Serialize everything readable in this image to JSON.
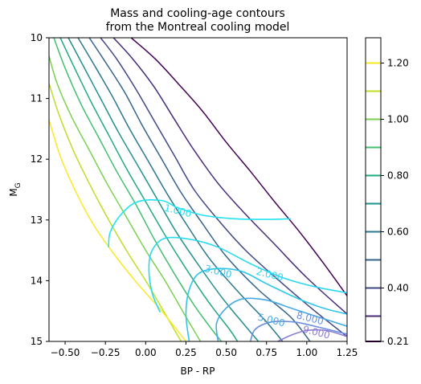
{
  "chart_data": {
    "type": "contour",
    "title_line1": "Mass and cooling-age contours",
    "title_line2": "from the Montreal cooling model",
    "xlabel": "BP - RP",
    "ylabel_main": "M",
    "ylabel_sub": "G",
    "xlim": [
      -0.6,
      1.25
    ],
    "ylim": [
      15,
      10
    ],
    "x_ticks": [
      {
        "value": -0.5,
        "label": "−0.50"
      },
      {
        "value": -0.25,
        "label": "−0.25"
      },
      {
        "value": 0.0,
        "label": "0.00"
      },
      {
        "value": 0.25,
        "label": "0.25"
      },
      {
        "value": 0.5,
        "label": "0.50"
      },
      {
        "value": 0.75,
        "label": "0.75"
      },
      {
        "value": 1.0,
        "label": "1.00"
      },
      {
        "value": 1.25,
        "label": "1.25"
      }
    ],
    "y_ticks": [
      {
        "value": 10,
        "label": "10"
      },
      {
        "value": 11,
        "label": "11"
      },
      {
        "value": 12,
        "label": "12"
      },
      {
        "value": 13,
        "label": "13"
      },
      {
        "value": 14,
        "label": "14"
      },
      {
        "value": 15,
        "label": "15"
      }
    ],
    "colorbar": {
      "min": 0.21,
      "max": 1.29,
      "tick_labels": [
        {
          "value": 0.21,
          "label": "0.21"
        },
        {
          "value": 0.4,
          "label": "0.40"
        },
        {
          "value": 0.6,
          "label": "0.60"
        },
        {
          "value": 0.8,
          "label": "0.80"
        },
        {
          "value": 1.0,
          "label": "1.00"
        },
        {
          "value": 1.2,
          "label": "1.20"
        }
      ],
      "levels": [
        {
          "value": 0.21,
          "color": "#440154"
        },
        {
          "value": 0.3,
          "color": "#472c7a"
        },
        {
          "value": 0.4,
          "color": "#3f4788"
        },
        {
          "value": 0.5,
          "color": "#33638d"
        },
        {
          "value": 0.6,
          "color": "#2a788e"
        },
        {
          "value": 0.7,
          "color": "#21908d"
        },
        {
          "value": 0.8,
          "color": "#22a884"
        },
        {
          "value": 0.9,
          "color": "#44bf70"
        },
        {
          "value": 1.0,
          "color": "#7ad151"
        },
        {
          "value": 1.1,
          "color": "#bddf26"
        },
        {
          "value": 1.2,
          "color": "#fde725"
        }
      ]
    },
    "mass_contours": [
      {
        "level": 0.21,
        "color": "#440154",
        "points": [
          [
            -0.09,
            10.0
          ],
          [
            0.06,
            10.35
          ],
          [
            0.2,
            10.75
          ],
          [
            0.35,
            11.2
          ],
          [
            0.5,
            11.72
          ],
          [
            0.65,
            12.2
          ],
          [
            0.8,
            12.7
          ],
          [
            0.95,
            13.18
          ],
          [
            1.1,
            13.7
          ],
          [
            1.25,
            14.25
          ]
        ]
      },
      {
        "level": 0.3,
        "color": "#472c7a",
        "points": [
          [
            -0.2,
            10.0
          ],
          [
            -0.08,
            10.35
          ],
          [
            0.05,
            10.8
          ],
          [
            0.18,
            11.35
          ],
          [
            0.3,
            11.85
          ],
          [
            0.45,
            12.4
          ],
          [
            0.6,
            12.85
          ],
          [
            0.8,
            13.4
          ],
          [
            1.0,
            13.95
          ],
          [
            1.25,
            14.55
          ]
        ]
      },
      {
        "level": 0.4,
        "color": "#3f4788",
        "points": [
          [
            -0.28,
            10.0
          ],
          [
            -0.18,
            10.35
          ],
          [
            -0.06,
            10.85
          ],
          [
            0.06,
            11.4
          ],
          [
            0.18,
            11.95
          ],
          [
            0.3,
            12.5
          ],
          [
            0.45,
            13.0
          ],
          [
            0.62,
            13.5
          ],
          [
            0.85,
            14.05
          ],
          [
            1.05,
            14.5
          ],
          [
            1.25,
            14.92
          ]
        ]
      },
      {
        "level": 0.5,
        "color": "#33638d",
        "points": [
          [
            -0.35,
            10.0
          ],
          [
            -0.25,
            10.4
          ],
          [
            -0.13,
            10.9
          ],
          [
            -0.02,
            11.45
          ],
          [
            0.1,
            12.0
          ],
          [
            0.22,
            12.55
          ],
          [
            0.35,
            13.05
          ],
          [
            0.5,
            13.6
          ],
          [
            0.7,
            14.15
          ],
          [
            0.9,
            14.6
          ],
          [
            1.02,
            15.0
          ]
        ]
      },
      {
        "level": 0.6,
        "color": "#2a788e",
        "points": [
          [
            -0.42,
            10.0
          ],
          [
            -0.33,
            10.4
          ],
          [
            -0.21,
            10.95
          ],
          [
            -0.1,
            11.5
          ],
          [
            0.02,
            12.05
          ],
          [
            0.14,
            12.6
          ],
          [
            0.26,
            13.1
          ],
          [
            0.4,
            13.65
          ],
          [
            0.58,
            14.2
          ],
          [
            0.74,
            14.65
          ],
          [
            0.85,
            15.0
          ]
        ]
      },
      {
        "level": 0.7,
        "color": "#21908d",
        "points": [
          [
            -0.48,
            10.0
          ],
          [
            -0.39,
            10.45
          ],
          [
            -0.28,
            11.0
          ],
          [
            -0.17,
            11.55
          ],
          [
            -0.05,
            12.1
          ],
          [
            0.07,
            12.65
          ],
          [
            0.19,
            13.2
          ],
          [
            0.33,
            13.75
          ],
          [
            0.48,
            14.3
          ],
          [
            0.62,
            14.75
          ],
          [
            0.7,
            15.0
          ]
        ]
      },
      {
        "level": 0.8,
        "color": "#22a884",
        "points": [
          [
            -0.53,
            10.0
          ],
          [
            -0.45,
            10.45
          ],
          [
            -0.34,
            11.05
          ],
          [
            -0.23,
            11.6
          ],
          [
            -0.12,
            12.15
          ],
          [
            0.0,
            12.7
          ],
          [
            0.12,
            13.25
          ],
          [
            0.25,
            13.8
          ],
          [
            0.39,
            14.35
          ],
          [
            0.52,
            14.8
          ],
          [
            0.57,
            15.0
          ]
        ]
      },
      {
        "level": 0.9,
        "color": "#44bf70",
        "points": [
          [
            -0.57,
            10.0
          ],
          [
            -0.5,
            10.5
          ],
          [
            -0.4,
            11.1
          ],
          [
            -0.29,
            11.65
          ],
          [
            -0.18,
            12.2
          ],
          [
            -0.06,
            12.75
          ],
          [
            0.05,
            13.3
          ],
          [
            0.17,
            13.85
          ],
          [
            0.3,
            14.4
          ],
          [
            0.41,
            14.8
          ],
          [
            0.47,
            15.0
          ]
        ]
      },
      {
        "level": 1.0,
        "color": "#7ad151",
        "points": [
          [
            -0.6,
            10.3
          ],
          [
            -0.55,
            10.75
          ],
          [
            -0.46,
            11.3
          ],
          [
            -0.35,
            11.85
          ],
          [
            -0.24,
            12.4
          ],
          [
            -0.12,
            12.95
          ],
          [
            0.0,
            13.5
          ],
          [
            0.12,
            14.0
          ],
          [
            0.24,
            14.55
          ],
          [
            0.34,
            15.0
          ]
        ]
      },
      {
        "level": 1.1,
        "color": "#bddf26",
        "points": [
          [
            -0.6,
            10.75
          ],
          [
            -0.54,
            11.25
          ],
          [
            -0.45,
            11.85
          ],
          [
            -0.35,
            12.4
          ],
          [
            -0.24,
            12.95
          ],
          [
            -0.12,
            13.5
          ],
          [
            0.0,
            14.0
          ],
          [
            0.1,
            14.45
          ],
          [
            0.22,
            15.0
          ]
        ]
      },
      {
        "level": 1.2,
        "color": "#fde725",
        "points": [
          [
            -0.6,
            11.35
          ],
          [
            -0.53,
            11.95
          ],
          [
            -0.44,
            12.5
          ],
          [
            -0.33,
            13.05
          ],
          [
            -0.2,
            13.55
          ],
          [
            -0.05,
            14.05
          ],
          [
            0.1,
            14.5
          ],
          [
            0.25,
            15.0
          ]
        ]
      }
    ],
    "age_contours": [
      {
        "label": "1.000",
        "color": "#24e2f2",
        "label_at": [
          0.2,
          12.85
        ],
        "points": [
          [
            -0.23,
            13.45
          ],
          [
            -0.22,
            13.2
          ],
          [
            -0.15,
            12.9
          ],
          [
            -0.05,
            12.7
          ],
          [
            0.1,
            12.68
          ],
          [
            0.2,
            12.8
          ],
          [
            0.35,
            12.92
          ],
          [
            0.55,
            12.98
          ],
          [
            0.78,
            12.99
          ],
          [
            0.9,
            12.98
          ]
        ]
      },
      {
        "label": "2.000",
        "color": "#2ad8f0",
        "label_at": [
          0.77,
          13.9
        ],
        "points": [
          [
            0.09,
            14.52
          ],
          [
            0.04,
            14.2
          ],
          [
            0.02,
            13.8
          ],
          [
            0.04,
            13.5
          ],
          [
            0.12,
            13.3
          ],
          [
            0.28,
            13.32
          ],
          [
            0.45,
            13.45
          ],
          [
            0.65,
            13.72
          ],
          [
            0.85,
            13.95
          ],
          [
            1.05,
            14.1
          ],
          [
            1.25,
            14.2
          ]
        ]
      },
      {
        "label": "3.000",
        "color": "#30c6ec",
        "label_at": [
          0.45,
          13.85
        ],
        "points": [
          [
            0.27,
            15.0
          ],
          [
            0.25,
            14.55
          ],
          [
            0.27,
            14.15
          ],
          [
            0.33,
            13.88
          ],
          [
            0.45,
            13.8
          ],
          [
            0.6,
            13.85
          ],
          [
            0.75,
            14.05
          ],
          [
            0.95,
            14.3
          ],
          [
            1.1,
            14.45
          ],
          [
            1.25,
            14.55
          ]
        ]
      },
      {
        "label": "5.000",
        "color": "#45a9e6",
        "label_at": [
          0.78,
          14.65
        ],
        "points": [
          [
            0.45,
            15.0
          ],
          [
            0.44,
            14.7
          ],
          [
            0.5,
            14.45
          ],
          [
            0.6,
            14.3
          ],
          [
            0.75,
            14.32
          ],
          [
            0.9,
            14.45
          ],
          [
            1.05,
            14.58
          ],
          [
            1.25,
            14.75
          ]
        ]
      },
      {
        "label": "8.000",
        "color": "#6b8fe0",
        "label_at": [
          1.02,
          14.62
        ],
        "points": [
          [
            0.65,
            15.0
          ],
          [
            0.68,
            14.8
          ],
          [
            0.78,
            14.68
          ],
          [
            0.92,
            14.68
          ],
          [
            1.05,
            14.75
          ],
          [
            1.25,
            14.88
          ]
        ]
      },
      {
        "label": "9.000",
        "color": "#8d7cd6",
        "label_at": [
          1.06,
          14.85
        ],
        "points": [
          [
            0.82,
            15.0
          ],
          [
            0.9,
            14.9
          ],
          [
            1.0,
            14.82
          ],
          [
            1.12,
            14.82
          ],
          [
            1.25,
            14.92
          ]
        ]
      }
    ]
  }
}
